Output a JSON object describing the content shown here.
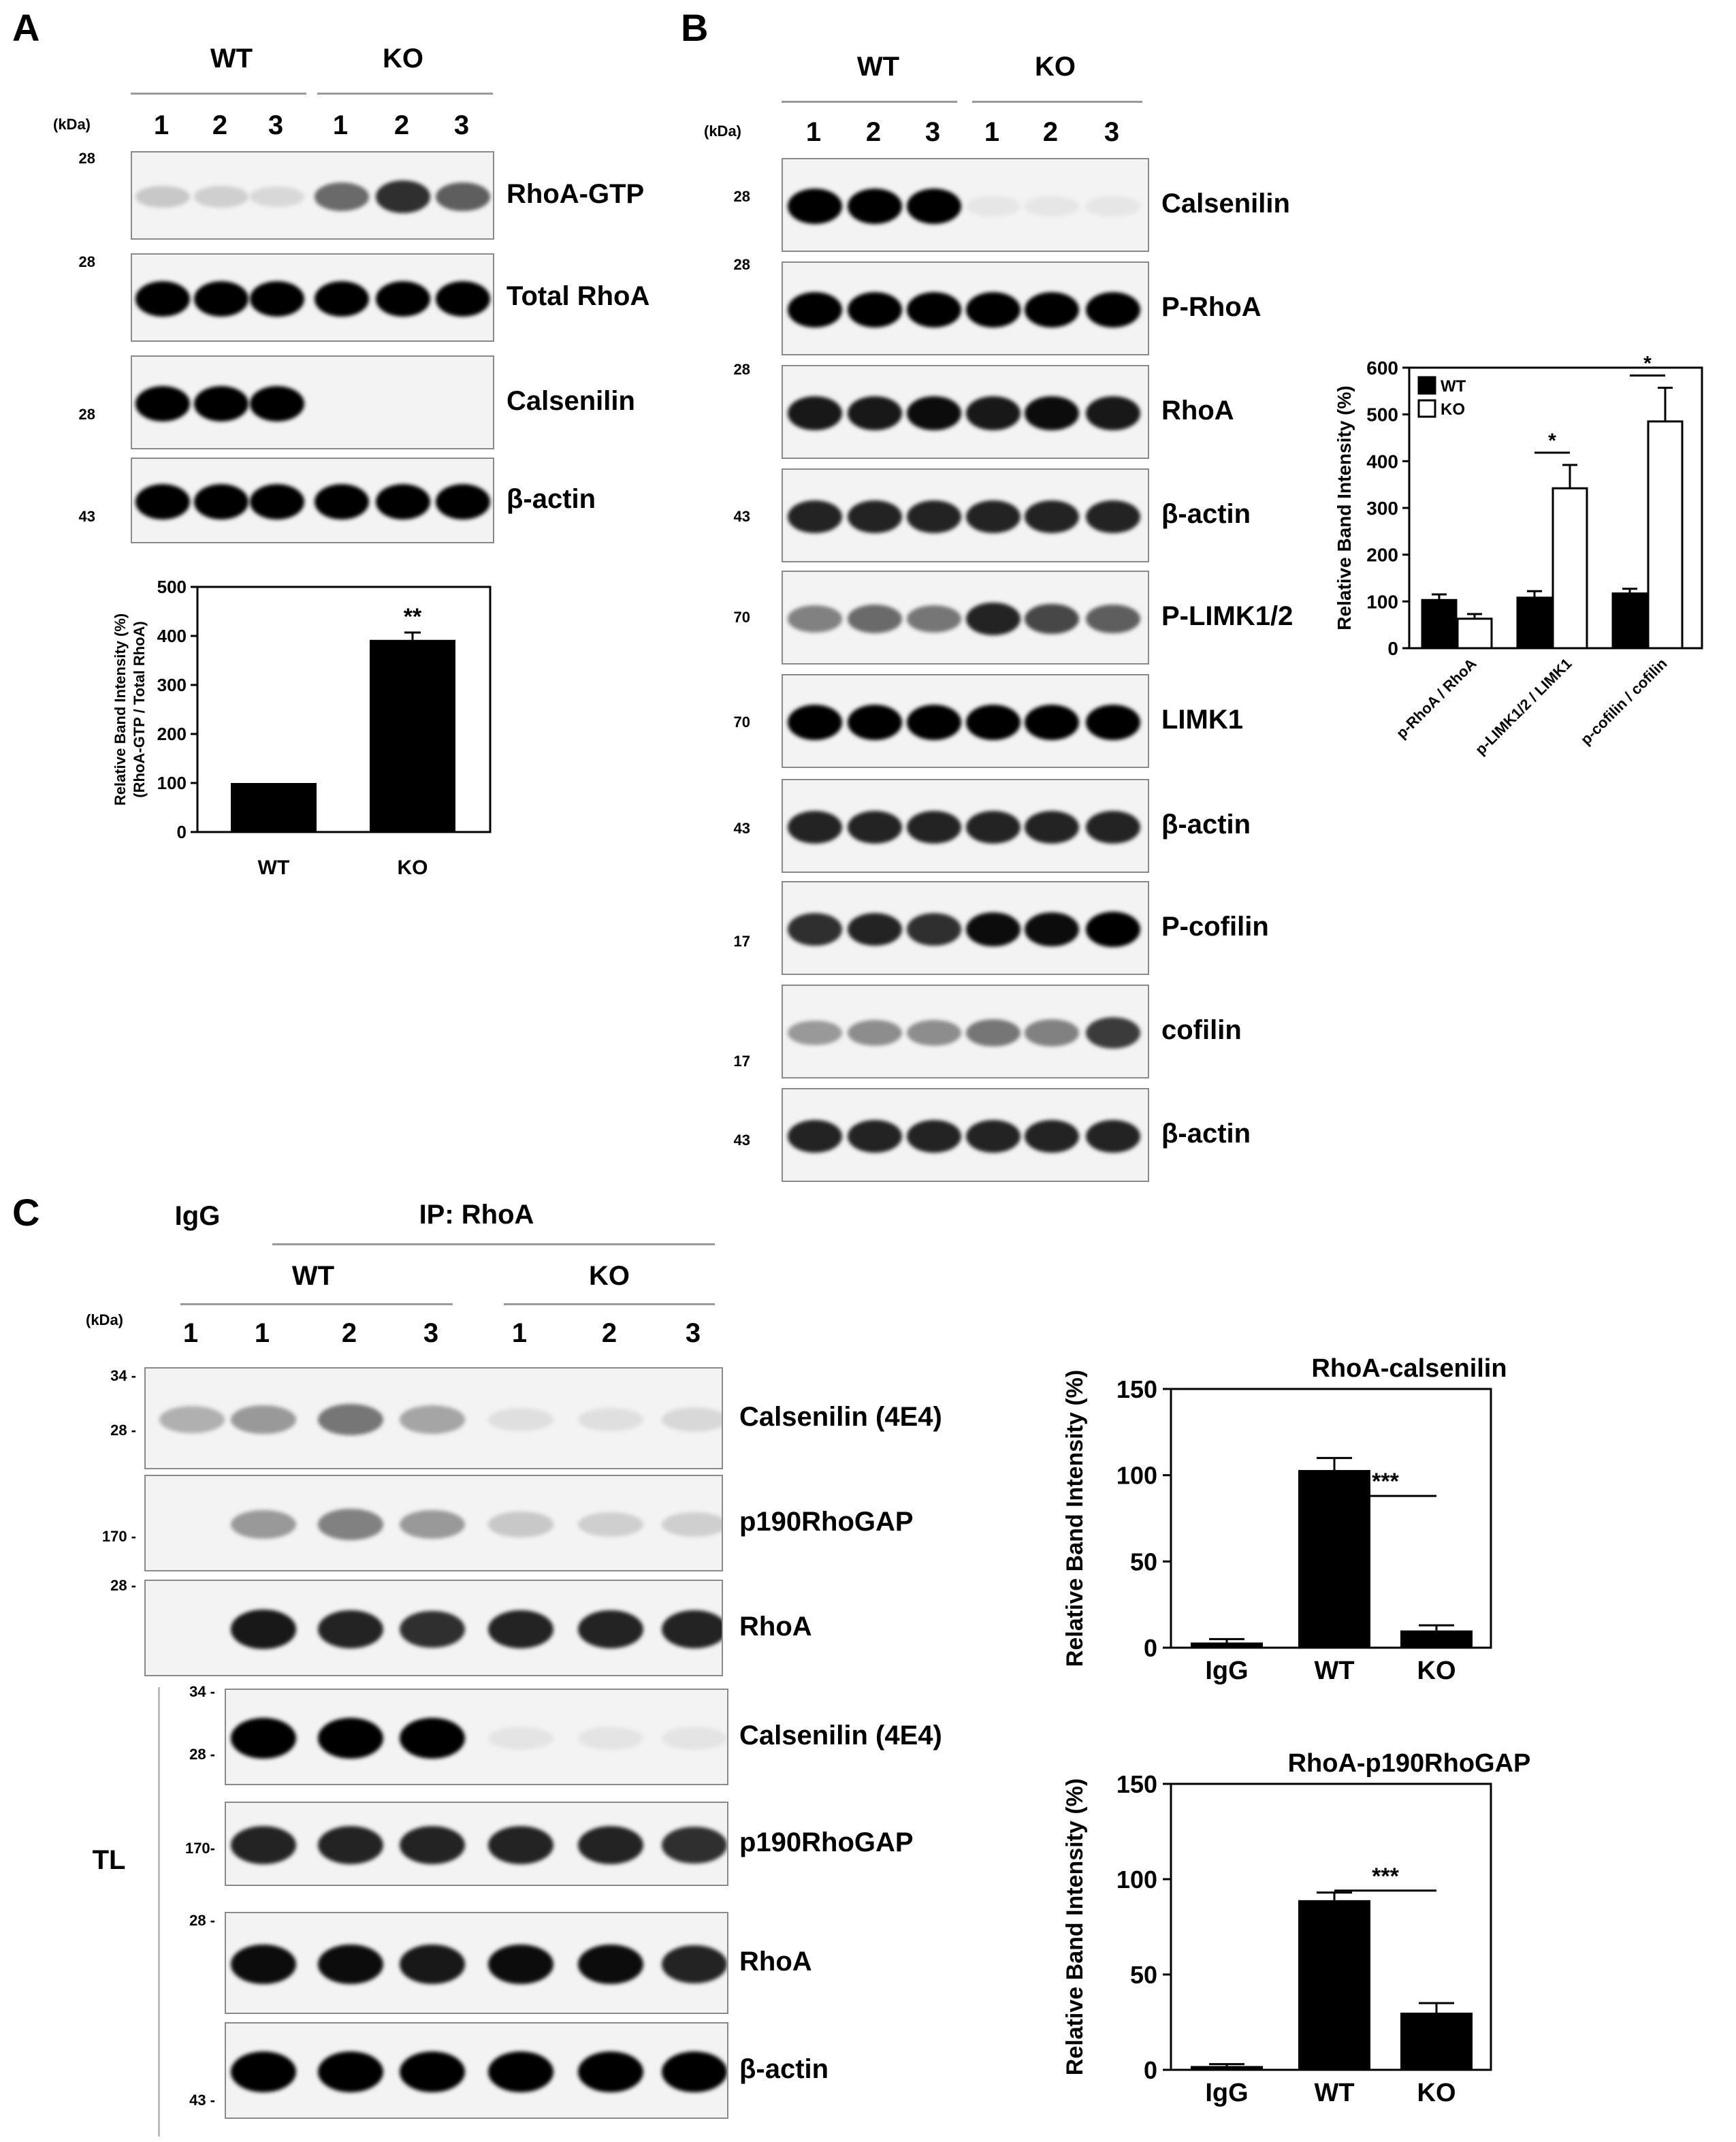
{
  "panels": {
    "A": {
      "letter": "A",
      "groups": [
        "WT",
        "KO"
      ],
      "lanes": [
        "1",
        "2",
        "3",
        "1",
        "2",
        "3"
      ],
      "kda": "(kDa)",
      "blots": [
        {
          "label": "RhoA-GTP",
          "mw": "28",
          "intensity": [
            0.15,
            0.12,
            0.08,
            0.55,
            0.8,
            0.6
          ]
        },
        {
          "label": "Total RhoA",
          "mw": "28",
          "intensity": [
            1,
            1,
            1,
            1,
            1,
            1
          ]
        },
        {
          "label": "Calsenilin",
          "mw": "28",
          "intensity": [
            1,
            1,
            1,
            0,
            0,
            0
          ]
        },
        {
          "label": "β-actin",
          "mw": "43",
          "intensity": [
            1,
            1,
            1,
            1,
            1,
            1
          ]
        }
      ]
    },
    "B": {
      "letter": "B",
      "groups": [
        "WT",
        "KO"
      ],
      "lanes": [
        "1",
        "2",
        "3",
        "1",
        "2",
        "3"
      ],
      "kda": "(kDa)",
      "blots": [
        {
          "label": "Calsenilin",
          "mw": "28",
          "intensity": [
            1,
            1,
            1,
            0.02,
            0.02,
            0.02
          ]
        },
        {
          "label": "P-RhoA",
          "mw": "28",
          "intensity": [
            1,
            1,
            1,
            1,
            1,
            1
          ]
        },
        {
          "label": "RhoA",
          "mw": "28",
          "intensity": [
            0.9,
            0.9,
            0.95,
            0.9,
            0.95,
            0.9
          ]
        },
        {
          "label": "β-actin",
          "mw": "43",
          "intensity": [
            0.85,
            0.85,
            0.85,
            0.85,
            0.85,
            0.85
          ]
        },
        {
          "label": "P-LIMK1/2",
          "mw": "70",
          "intensity": [
            0.45,
            0.55,
            0.5,
            0.85,
            0.7,
            0.6
          ]
        },
        {
          "label": "LIMK1",
          "mw": "70",
          "intensity": [
            1,
            1,
            1,
            1,
            1,
            1
          ]
        },
        {
          "label": "β-actin",
          "mw": "43",
          "intensity": [
            0.85,
            0.85,
            0.85,
            0.85,
            0.85,
            0.85
          ]
        },
        {
          "label": "P-cofilin",
          "mw": "17",
          "intensity": [
            0.8,
            0.85,
            0.8,
            0.95,
            0.95,
            1
          ]
        },
        {
          "label": "cofilin",
          "mw": "17",
          "intensity": [
            0.35,
            0.4,
            0.4,
            0.5,
            0.45,
            0.75
          ]
        },
        {
          "label": "β-actin",
          "mw": "43",
          "intensity": [
            0.85,
            0.85,
            0.85,
            0.85,
            0.85,
            0.85
          ]
        }
      ]
    },
    "C": {
      "letter": "C",
      "igg": "IgG",
      "ip": "IP: RhoA",
      "groups": [
        "WT",
        "KO"
      ],
      "lanes": [
        "1",
        "1",
        "2",
        "3",
        "1",
        "2",
        "3"
      ],
      "kda": "(kDa)",
      "tl": "TL",
      "blots": [
        {
          "label": "Calsenilin (4E4)",
          "mw": [
            "34 -",
            "28 -"
          ],
          "intensity": [
            0.25,
            0.35,
            0.5,
            0.3,
            0.05,
            0.05,
            0.08
          ]
        },
        {
          "label": "p190RhoGAP",
          "mw": [
            "170 -"
          ],
          "intensity": [
            0,
            0.35,
            0.45,
            0.35,
            0.15,
            0.12,
            0.12
          ]
        },
        {
          "label": "RhoA",
          "mw": [
            "28 -"
          ],
          "intensity": [
            0,
            0.9,
            0.85,
            0.8,
            0.85,
            0.85,
            0.85
          ]
        },
        {
          "label": "Calsenilin (4E4)",
          "mw": [
            "34 -",
            "28 -"
          ],
          "intensity": [
            1,
            1,
            1,
            0.03,
            0.03,
            0.03
          ]
        },
        {
          "label": "p190RhoGAP",
          "mw": [
            "170-"
          ],
          "intensity": [
            0.85,
            0.85,
            0.85,
            0.85,
            0.85,
            0.8
          ]
        },
        {
          "label": "RhoA",
          "mw": [
            "28 -"
          ],
          "intensity": [
            0.95,
            0.95,
            0.9,
            0.95,
            0.95,
            0.85
          ]
        },
        {
          "label": "β-actin",
          "mw": [
            "43 -"
          ],
          "intensity": [
            1,
            1,
            1,
            1,
            1,
            1
          ]
        }
      ]
    }
  },
  "chart_data": [
    {
      "type": "bar",
      "title": "",
      "categories": [
        "WT",
        "KO"
      ],
      "values": [
        100,
        392
      ],
      "errors": [
        0,
        15
      ],
      "ylabel": "Relative Band Intensity (%)",
      "ylabel2": "(RhoA-GTP / Total RhoA)",
      "ylim": [
        0,
        500
      ],
      "yticks": [
        "0",
        "100",
        "200",
        "300",
        "400",
        "500"
      ],
      "annotations": [
        "**"
      ]
    },
    {
      "type": "bar",
      "title": "",
      "categories": [
        "p-RhoA / RhoA",
        "p-LIMK1/2 / LIMK1",
        "p-cofilin / cofilin"
      ],
      "series": [
        {
          "name": "WT",
          "values": [
            103,
            108,
            117
          ],
          "errors": [
            12,
            14,
            10
          ],
          "color": "#000000"
        },
        {
          "name": "KO",
          "values": [
            63,
            342,
            485
          ],
          "errors": [
            10,
            50,
            72
          ],
          "color": "#ffffff"
        }
      ],
      "ylabel": "Relative Band Intensity (%)",
      "ylim": [
        0,
        600
      ],
      "yticks": [
        "0",
        "100",
        "200",
        "300",
        "400",
        "500",
        "600"
      ],
      "legend": "top-left",
      "annotations": [
        "*",
        "*"
      ]
    },
    {
      "type": "bar",
      "title": "RhoA-calsenilin",
      "categories": [
        "IgG",
        "WT",
        "KO"
      ],
      "values": [
        3,
        103,
        10
      ],
      "errors": [
        2,
        7,
        3
      ],
      "ylabel": "Relative Band Intensity (%)",
      "ylim": [
        0,
        150
      ],
      "yticks": [
        "0",
        "50",
        "100",
        "150"
      ],
      "annotations": [
        "***"
      ]
    },
    {
      "type": "bar",
      "title": "RhoA-p190RhoGAP",
      "categories": [
        "IgG",
        "WT",
        "KO"
      ],
      "values": [
        2,
        89,
        30
      ],
      "errors": [
        1,
        4,
        5
      ],
      "ylabel": "Relative Band Intensity (%)",
      "ylim": [
        0,
        150
      ],
      "yticks": [
        "0",
        "50",
        "100",
        "150"
      ],
      "annotations": [
        "***"
      ]
    }
  ]
}
